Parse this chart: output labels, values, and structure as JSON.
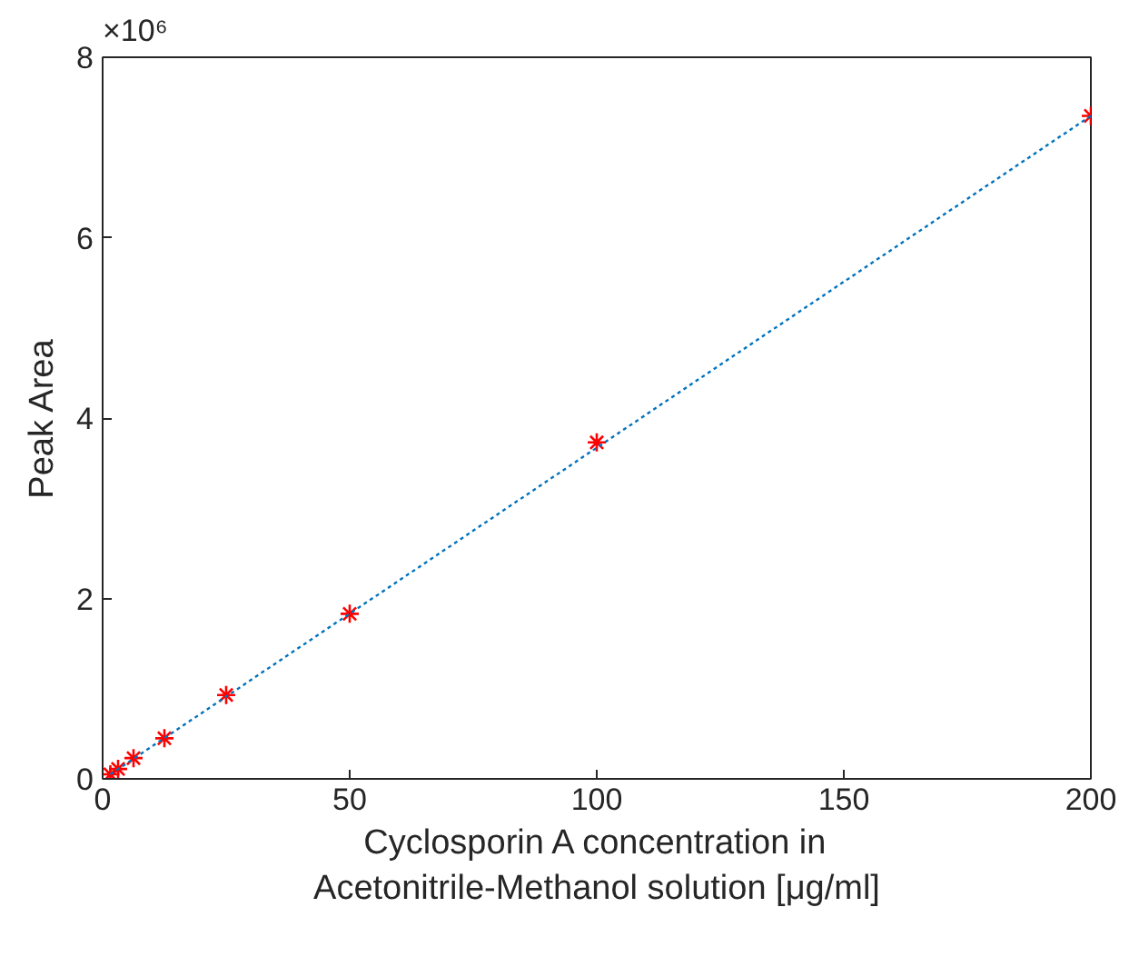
{
  "chart_data": {
    "type": "scatter",
    "xlabel": "Cyclosporin A concentration in\nAcetonitrile-Methanol solution [μg/ml]",
    "ylabel": "Peak Area",
    "annotations": [
      "×10⁶"
    ],
    "series": [
      {
        "type": "line",
        "color": "#0072bd",
        "line_style": "dotted",
        "marker": "none",
        "x": [
          1.5625,
          200
        ],
        "values": [
          0.05,
          7.35
        ]
      },
      {
        "color": "#ff0000",
        "marker": "cross",
        "x": [
          1.5625,
          3.125,
          6.25,
          12.5,
          25,
          50,
          100,
          200
        ],
        "values": [
          0.05,
          0.11,
          0.23,
          0.45,
          0.93,
          1.83,
          3.73,
          7.35
        ]
      }
    ],
    "xlim": [
      0,
      200
    ],
    "ylim": [
      0,
      8
    ],
    "xticks": [
      0,
      50,
      100,
      150,
      200
    ],
    "yticks": [
      0,
      2,
      4,
      6,
      8
    ],
    "grid": false
  }
}
